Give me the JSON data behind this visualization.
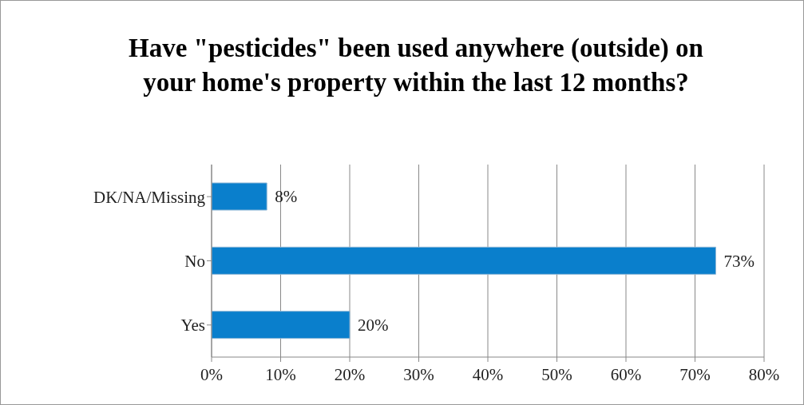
{
  "chart_data": {
    "type": "bar",
    "orientation": "horizontal",
    "title": "Have \"pesticides\" been used anywhere (outside) on your home's property within the last 12 months?",
    "categories": [
      "DK/NA/Missing",
      "No",
      "Yes"
    ],
    "values": [
      8,
      73,
      20
    ],
    "value_labels": [
      "8%",
      "73%",
      "20%"
    ],
    "color": "#0a7fcc",
    "xlim": [
      0,
      80
    ],
    "xticks": [
      {
        "value": 0,
        "label": "0%"
      },
      {
        "value": 10,
        "label": "10%"
      },
      {
        "value": 20,
        "label": "20%"
      },
      {
        "value": 30,
        "label": "30%"
      },
      {
        "value": 40,
        "label": "40%"
      },
      {
        "value": 50,
        "label": "50%"
      },
      {
        "value": 60,
        "label": "60%"
      },
      {
        "value": 70,
        "label": "70%"
      },
      {
        "value": 80,
        "label": "80%"
      }
    ],
    "grid": "x",
    "legend": false
  }
}
